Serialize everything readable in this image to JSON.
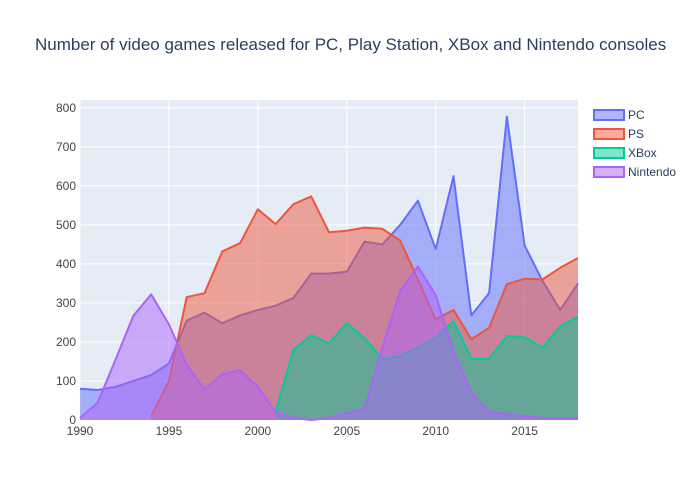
{
  "chart_data": {
    "type": "area",
    "title": "Number of video games released for PC, Play Station, XBox and Nintendo consoles",
    "xlabel": "",
    "ylabel": "",
    "xlim": [
      1990,
      2018
    ],
    "ylim": [
      0,
      820
    ],
    "x_ticks": [
      1990,
      1995,
      2000,
      2005,
      2010,
      2015
    ],
    "y_ticks": [
      0,
      100,
      200,
      300,
      400,
      500,
      600,
      700,
      800
    ],
    "grid": true,
    "legend_position": "top-right",
    "series": [
      {
        "name": "PC",
        "color": "#636efa",
        "x": [
          1990,
          1991,
          1992,
          1993,
          1994,
          1995,
          1996,
          1997,
          1998,
          1999,
          2000,
          2001,
          2002,
          2003,
          2004,
          2005,
          2006,
          2007,
          2008,
          2009,
          2010,
          2011,
          2012,
          2013,
          2014,
          2015,
          2016,
          2017,
          2018
        ],
        "values": [
          80,
          77,
          85,
          100,
          115,
          145,
          255,
          275,
          248,
          268,
          282,
          293,
          313,
          375,
          375,
          380,
          457,
          450,
          500,
          562,
          438,
          625,
          268,
          325,
          777,
          447,
          357,
          282,
          350
        ]
      },
      {
        "name": "PS",
        "color": "#ef553b",
        "x": [
          1994,
          1995,
          1996,
          1997,
          1998,
          1999,
          2000,
          2001,
          2002,
          2003,
          2004,
          2005,
          2006,
          2007,
          2008,
          2009,
          2010,
          2011,
          2012,
          2013,
          2014,
          2015,
          2016,
          2017,
          2018
        ],
        "values": [
          10,
          100,
          315,
          325,
          432,
          453,
          540,
          502,
          553,
          573,
          481,
          485,
          493,
          490,
          460,
          360,
          258,
          282,
          207,
          236,
          348,
          362,
          360,
          390,
          415
        ]
      },
      {
        "name": "XBox",
        "color": "#00cc96",
        "x": [
          2001,
          2002,
          2003,
          2004,
          2005,
          2006,
          2007,
          2008,
          2009,
          2010,
          2011,
          2012,
          2013,
          2014,
          2015,
          2016,
          2017,
          2018
        ],
        "values": [
          20,
          180,
          217,
          196,
          248,
          210,
          155,
          165,
          185,
          210,
          253,
          157,
          157,
          215,
          212,
          185,
          240,
          265
        ]
      },
      {
        "name": "Nintendo",
        "color": "#ab63fa",
        "x": [
          1990,
          1991,
          1992,
          1993,
          1994,
          1995,
          1996,
          1997,
          1998,
          1999,
          2000,
          2001,
          2002,
          2003,
          2004,
          2005,
          2006,
          2007,
          2008,
          2009,
          2010,
          2011,
          2012,
          2013,
          2014,
          2015,
          2016,
          2017,
          2018
        ],
        "values": [
          5,
          45,
          155,
          267,
          322,
          245,
          142,
          78,
          118,
          128,
          85,
          20,
          5,
          0,
          5,
          18,
          30,
          185,
          330,
          393,
          320,
          175,
          70,
          22,
          15,
          10,
          5,
          5,
          5
        ]
      }
    ]
  }
}
